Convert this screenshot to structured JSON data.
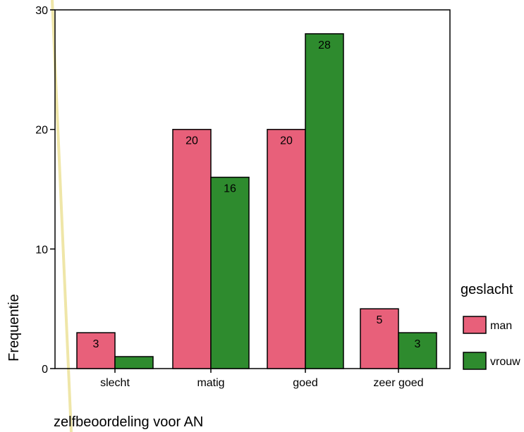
{
  "chart_data": {
    "type": "bar",
    "categories": [
      "slecht",
      "matig",
      "goed",
      "zeer goed"
    ],
    "series": [
      {
        "name": "man",
        "values": [
          3,
          20,
          20,
          5
        ],
        "color": "#e8607a",
        "labels": [
          "3",
          "20",
          "20",
          "5"
        ]
      },
      {
        "name": "vrouw",
        "values": [
          1,
          16,
          28,
          3
        ],
        "color": "#2e8b2e",
        "labels": [
          "",
          "16",
          "28",
          "3"
        ]
      }
    ],
    "xlabel": "zelfbeoordeling voor AN",
    "ylabel": "Frequentie",
    "ylim": [
      0,
      30
    ],
    "yticks": [
      "0",
      "10",
      "20",
      "30"
    ],
    "legend_title": "geslacht",
    "legend_position": "right",
    "grid": false
  }
}
